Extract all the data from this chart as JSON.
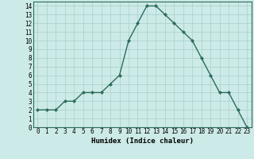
{
  "x": [
    0,
    1,
    2,
    3,
    4,
    5,
    6,
    7,
    8,
    9,
    10,
    11,
    12,
    13,
    14,
    15,
    16,
    17,
    18,
    19,
    20,
    21,
    22,
    23
  ],
  "y": [
    2,
    2,
    2,
    3,
    3,
    4,
    4,
    4,
    5,
    6,
    10,
    12,
    14,
    14,
    13,
    12,
    11,
    10,
    8,
    6,
    4,
    4,
    2,
    0
  ],
  "line_color": "#2d6b5e",
  "marker": "D",
  "marker_size": 2.0,
  "bg_color": "#cceae7",
  "grid_color": "#aed4d0",
  "xlabel": "Humidex (Indice chaleur)",
  "ylabel": "",
  "xlim": [
    -0.5,
    23.5
  ],
  "ylim": [
    0,
    14.5
  ],
  "yticks": [
    0,
    1,
    2,
    3,
    4,
    5,
    6,
    7,
    8,
    9,
    10,
    11,
    12,
    13,
    14
  ],
  "xticks": [
    0,
    1,
    2,
    3,
    4,
    5,
    6,
    7,
    8,
    9,
    10,
    11,
    12,
    13,
    14,
    15,
    16,
    17,
    18,
    19,
    20,
    21,
    22,
    23
  ],
  "xlabel_fontsize": 6.5,
  "tick_fontsize": 5.5,
  "line_width": 1.0
}
